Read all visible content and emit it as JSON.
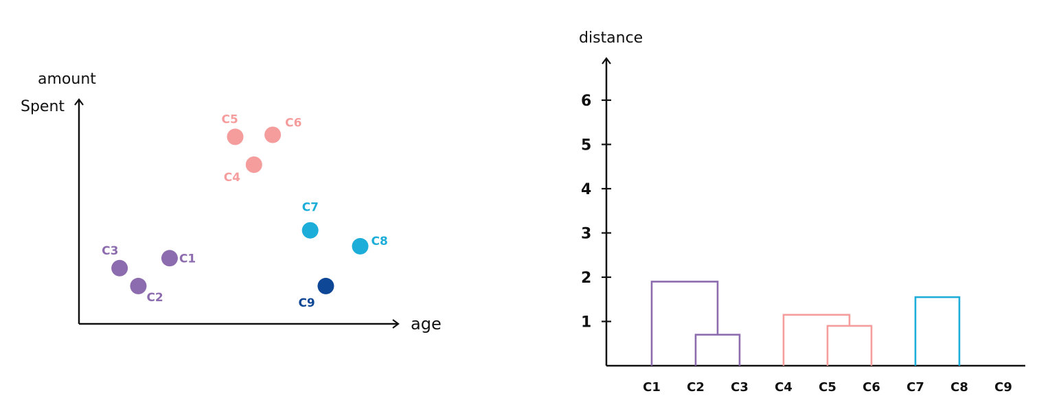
{
  "chart_data": [
    {
      "type": "scatter",
      "title": "",
      "xlabel": "age",
      "ylabel": "amount Spent",
      "xlim": [
        0,
        10
      ],
      "ylim": [
        0,
        10
      ],
      "grid": false,
      "points": [
        {
          "label": "C1",
          "x": 2.9,
          "y": 3.3,
          "cluster": "purple"
        },
        {
          "label": "C2",
          "x": 1.9,
          "y": 1.9,
          "cluster": "purple"
        },
        {
          "label": "C3",
          "x": 1.3,
          "y": 2.8,
          "cluster": "purple"
        },
        {
          "label": "C4",
          "x": 5.6,
          "y": 8.0,
          "cluster": "pink"
        },
        {
          "label": "C5",
          "x": 5.0,
          "y": 9.4,
          "cluster": "pink"
        },
        {
          "label": "C6",
          "x": 6.2,
          "y": 9.5,
          "cluster": "pink"
        },
        {
          "label": "C7",
          "x": 7.4,
          "y": 4.7,
          "cluster": "cyan"
        },
        {
          "label": "C8",
          "x": 9.0,
          "y": 3.9,
          "cluster": "cyan"
        },
        {
          "label": "C9",
          "x": 7.9,
          "y": 1.9,
          "cluster": "navy"
        }
      ]
    },
    {
      "type": "dendrogram",
      "title": "",
      "ylabel": "distance",
      "ylim": [
        0,
        6.8
      ],
      "yticks": [
        "1",
        "2",
        "3",
        "4",
        "5",
        "6"
      ],
      "leaves": [
        "C1",
        "C2",
        "C3",
        "C4",
        "C5",
        "C6",
        "C7",
        "C8",
        "C9"
      ],
      "merges": [
        {
          "left": [
            1
          ],
          "right": [
            2
          ],
          "height": 0.7,
          "cluster": "purple"
        },
        {
          "left": [
            0
          ],
          "right": [
            1,
            2
          ],
          "height": 1.9,
          "cluster": "purple"
        },
        {
          "left": [
            4
          ],
          "right": [
            5
          ],
          "height": 0.9,
          "cluster": "pink"
        },
        {
          "left": [
            3
          ],
          "right": [
            4,
            5
          ],
          "height": 1.15,
          "cluster": "pink"
        },
        {
          "left": [
            6
          ],
          "right": [
            7
          ],
          "height": 1.55,
          "cluster": "cyan"
        }
      ]
    }
  ],
  "colors": {
    "purple": "#8c6bae",
    "pink": "#f59c9c",
    "cyan": "#1cadd9",
    "navy": "#0e4796",
    "axis": "#111111"
  }
}
